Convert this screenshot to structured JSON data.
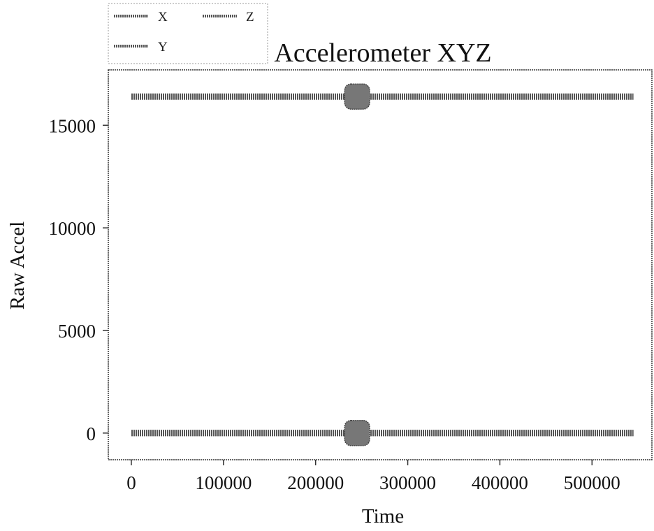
{
  "chart_data": {
    "type": "line",
    "title": "Accelerometer XYZ",
    "xlabel": "Time",
    "ylabel": "Raw Accel",
    "xlim": [
      -25000,
      565000
    ],
    "ylim": [
      -1300,
      17700
    ],
    "xticks": [
      0,
      100000,
      200000,
      300000,
      400000,
      500000
    ],
    "xtick_labels": [
      "0",
      "100000",
      "200000",
      "300000",
      "400000",
      "500000"
    ],
    "yticks": [
      0,
      5000,
      10000,
      15000
    ],
    "ytick_labels": [
      "0",
      "5000",
      "10000",
      "15000"
    ],
    "legend": {
      "placement": "upper-left, above axes",
      "entries": [
        "X",
        "Y",
        "Z"
      ]
    },
    "series": [
      {
        "name": "X",
        "x": [
          0,
          230000,
          245000,
          260000,
          545000
        ],
        "y": [
          0,
          0,
          0,
          0,
          0
        ]
      },
      {
        "name": "Y",
        "x": [
          0,
          230000,
          245000,
          260000,
          545000
        ],
        "y": [
          0,
          0,
          0,
          0,
          0
        ]
      },
      {
        "name": "Z",
        "x": [
          0,
          230000,
          245000,
          260000,
          545000
        ],
        "y": [
          16400,
          16400,
          16400,
          16400,
          16400
        ]
      }
    ],
    "grid": false,
    "colors": {
      "line": "#555555",
      "frame": "#333333"
    }
  }
}
